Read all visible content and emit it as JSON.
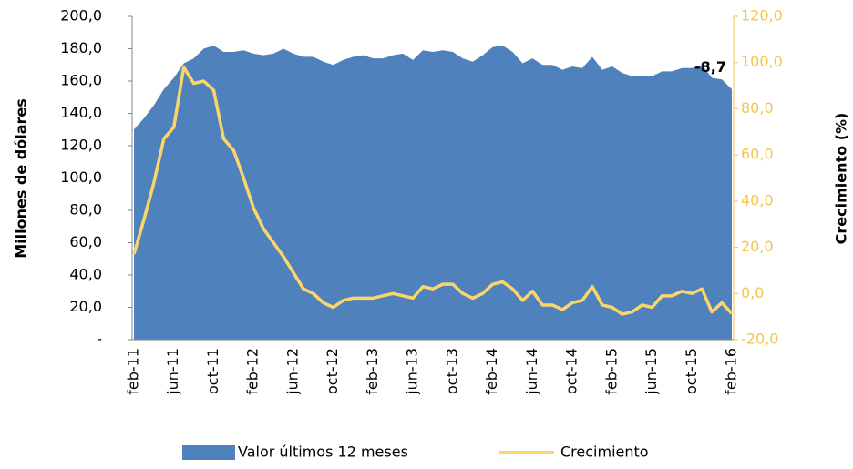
{
  "chart_data": {
    "type": "area",
    "y_label": "Millones de dólares",
    "y2_label": "Crecimiento  (%)",
    "categories": [
      "feb-11",
      null,
      null,
      null,
      "jun-11",
      null,
      null,
      null,
      "oct-11",
      null,
      null,
      null,
      "feb-12",
      null,
      null,
      null,
      "jun-12",
      null,
      null,
      null,
      "oct-12",
      null,
      null,
      null,
      "feb-13",
      null,
      null,
      null,
      "jun-13",
      null,
      null,
      null,
      "oct-13",
      null,
      null,
      null,
      "feb-14",
      null,
      null,
      null,
      "jun-14",
      null,
      null,
      null,
      "oct-14",
      null,
      null,
      null,
      "feb-15",
      null,
      null,
      null,
      "jun-15",
      null,
      null,
      null,
      "oct-15",
      null,
      null,
      null,
      "feb-16"
    ],
    "series": [
      {
        "name": "Valor últimos 12 meses",
        "type": "area",
        "color": "#4f81bd",
        "values": [
          130,
          137,
          145,
          155,
          162,
          171,
          174,
          180,
          182,
          178,
          178,
          179,
          177,
          176,
          177,
          180,
          177,
          175,
          175,
          172,
          170,
          173,
          175,
          176,
          174,
          174,
          176,
          177,
          173,
          179,
          178,
          179,
          178,
          174,
          172,
          176,
          181,
          182,
          178,
          171,
          174,
          170,
          170,
          167,
          169,
          168,
          175,
          167,
          169,
          165,
          163,
          163,
          163,
          166,
          166,
          168,
          168,
          170,
          162,
          161,
          155
        ]
      },
      {
        "name": "Crecimiento",
        "type": "line",
        "axis": "y2",
        "color": "#fbd568",
        "values": [
          17,
          32,
          48,
          67,
          72,
          98,
          91,
          92,
          88,
          67,
          62,
          50,
          37,
          28,
          22,
          16,
          9,
          2,
          0,
          -4,
          -6,
          -3,
          -2,
          -2,
          -2,
          -1,
          0,
          -1,
          -2,
          3,
          2,
          4,
          4,
          0,
          -2,
          0,
          4,
          5,
          2,
          -3,
          1,
          -5,
          -5,
          -7,
          -4,
          -3,
          3,
          -5,
          -6,
          -9,
          -8,
          -5,
          -6,
          -1,
          -1,
          1,
          0,
          2,
          -8,
          -4,
          -8.7
        ],
        "value_labels": [
          null,
          null,
          null,
          null,
          null,
          null,
          null,
          null,
          null,
          null,
          null,
          null,
          null,
          null,
          null,
          null,
          null,
          null,
          null,
          null,
          null,
          null,
          null,
          null,
          null,
          null,
          null,
          null,
          null,
          null,
          null,
          null,
          null,
          null,
          null,
          null,
          null,
          null,
          null,
          null,
          null,
          null,
          null,
          null,
          null,
          null,
          null,
          null,
          null,
          null,
          null,
          null,
          null,
          null,
          null,
          null,
          null,
          null,
          null,
          null,
          "-8,7"
        ]
      }
    ],
    "ylim": [
      0,
      200
    ],
    "yticks": [
      {
        "value": 0,
        "label": "-"
      },
      {
        "value": 20,
        "label": "20,0"
      },
      {
        "value": 40,
        "label": "40,0"
      },
      {
        "value": 60,
        "label": "60,0"
      },
      {
        "value": 80,
        "label": "80,0"
      },
      {
        "value": 100,
        "label": "100,0"
      },
      {
        "value": 120,
        "label": "120,0"
      },
      {
        "value": 140,
        "label": "140,0"
      },
      {
        "value": 160,
        "label": "160,0"
      },
      {
        "value": 180,
        "label": "180,0"
      },
      {
        "value": 200,
        "label": "200,0"
      }
    ],
    "y2lim": [
      -20,
      120
    ],
    "y2ticks": [
      {
        "value": -20,
        "label": "-20,0"
      },
      {
        "value": 0,
        "label": "0,0"
      },
      {
        "value": 20,
        "label": "20,0"
      },
      {
        "value": 40,
        "label": "40,0"
      },
      {
        "value": 60,
        "label": "60,0"
      },
      {
        "value": 80,
        "label": "80,0"
      },
      {
        "value": 100,
        "label": "100,0"
      },
      {
        "value": 120,
        "label": "120,0"
      }
    ],
    "grid": false,
    "legend": "bottom"
  }
}
